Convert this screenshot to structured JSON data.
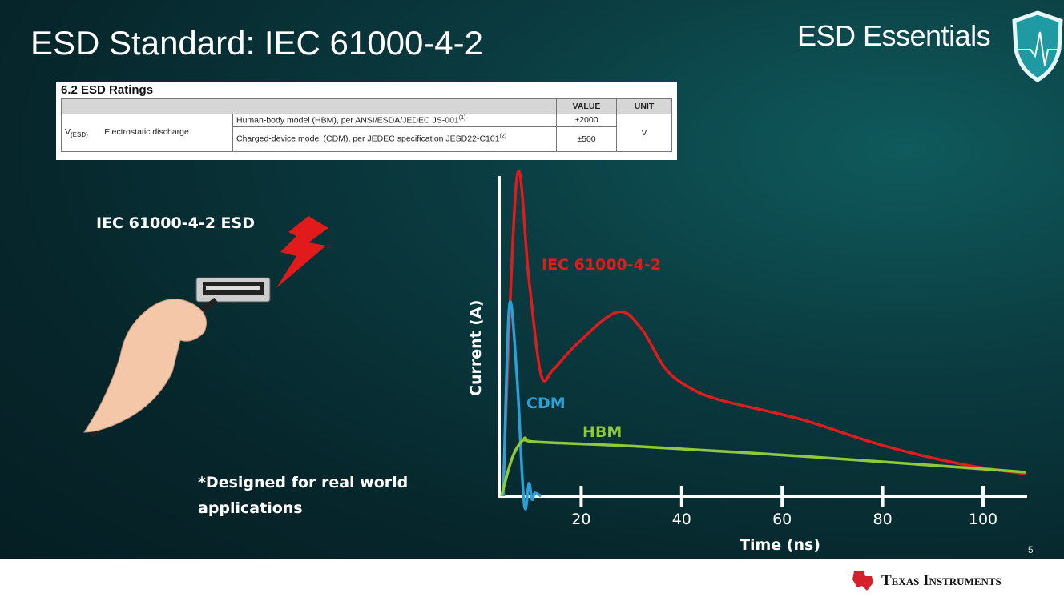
{
  "slide": {
    "title": "ESD Standard: IEC 61000-4-2",
    "brand": "ESD Essentials",
    "page_number": "5",
    "left_heading": "IEC 61000-4-2 ESD",
    "note_line1": "*Designed for real world",
    "note_line2": "applications",
    "footer_logo": "Texas Instruments"
  },
  "ratings_table": {
    "heading": "6.2   ESD Ratings",
    "col_value": "VALUE",
    "col_unit": "UNIT",
    "symbol": "V",
    "symbol_sub": "(ESD)",
    "parameter": "Electrostatic discharge",
    "rows": [
      {
        "condition": "Human-body model (HBM), per ANSI/ESDA/JEDEC JS-001",
        "note": "(1)",
        "value": "±2000"
      },
      {
        "condition": "Charged-device model (CDM), per JEDEC specification JESD22-C101",
        "note": "(2)",
        "value": "±500"
      }
    ],
    "unit": "V"
  },
  "chart_data": {
    "type": "line",
    "xlabel": "Time (ns)",
    "ylabel": "Current (A)",
    "xticks": [
      20,
      40,
      60,
      80,
      100
    ],
    "xlim": [
      3.7,
      108.5
    ],
    "ylim": [
      -0.05,
      1.0
    ],
    "grid": false,
    "series": [
      {
        "name": "IEC 61000-4-2",
        "color": "#e01b1b",
        "x": [
          4.5,
          7.2,
          9.6,
          12,
          14.4,
          19.1,
          27.1,
          31.9,
          36.7,
          41.5,
          47.8,
          63.8,
          79.7,
          95.7,
          108.5
        ],
        "y": [
          0.05,
          0.995,
          0.675,
          0.38,
          0.395,
          0.475,
          0.575,
          0.525,
          0.4,
          0.34,
          0.3,
          0.24,
          0.16,
          0.1,
          0.07
        ]
      },
      {
        "name": "CDM",
        "color": "#2a9fd8",
        "x": [
          4.5,
          5.7,
          7.2,
          8.3,
          8.9,
          9.6,
          10.2,
          10.8,
          12
        ],
        "y": [
          0,
          0.595,
          0.375,
          0.05,
          -0.04,
          0.04,
          -0.01,
          0.01,
          0
        ]
      },
      {
        "name": "HBM",
        "color": "#8fc93a",
        "x": [
          4.1,
          6.4,
          8.8,
          10.8,
          31.9,
          63.8,
          95.7,
          108.5
        ],
        "y": [
          0,
          0.125,
          0.18,
          0.17,
          0.155,
          0.125,
          0.09,
          0.075
        ]
      }
    ]
  }
}
